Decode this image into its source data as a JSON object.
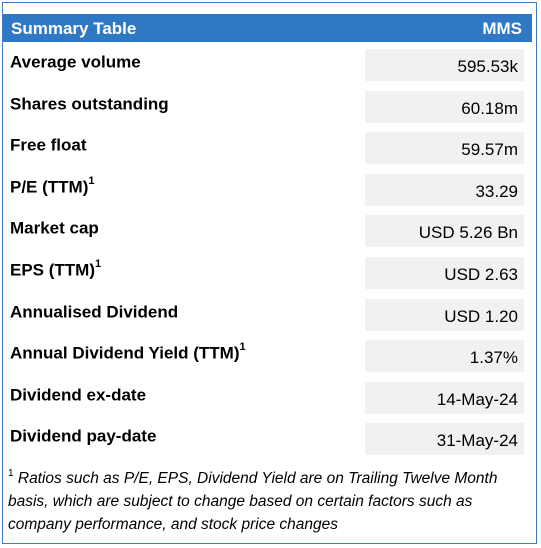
{
  "header": {
    "title": "Summary Table",
    "column": "MMS"
  },
  "rows": [
    {
      "label": "Average volume",
      "sup": "",
      "value": "595.53k"
    },
    {
      "label": "Shares outstanding",
      "sup": "",
      "value": "60.18m"
    },
    {
      "label": "Free float",
      "sup": "",
      "value": "59.57m"
    },
    {
      "label": "P/E (TTM)",
      "sup": "1",
      "value": "33.29"
    },
    {
      "label": "Market cap",
      "sup": "",
      "value": "USD 5.26 Bn"
    },
    {
      "label": "EPS (TTM)",
      "sup": "1",
      "value": "USD 2.63"
    },
    {
      "label": "Annualised Dividend",
      "sup": "",
      "value": "USD 1.20"
    },
    {
      "label": "Annual Dividend Yield (TTM)",
      "sup": "1",
      "value": "1.37%"
    },
    {
      "label": "Dividend ex-date",
      "sup": "",
      "value": "14-May-24"
    },
    {
      "label": "Dividend pay-date",
      "sup": "",
      "value": "31-May-24"
    }
  ],
  "footnote": {
    "marker": "1",
    "text": " Ratios such as P/E, EPS, Dividend Yield are on Trailing Twelve Month basis, which are subject to change based on certain factors such as company performance, and stock price changes"
  }
}
